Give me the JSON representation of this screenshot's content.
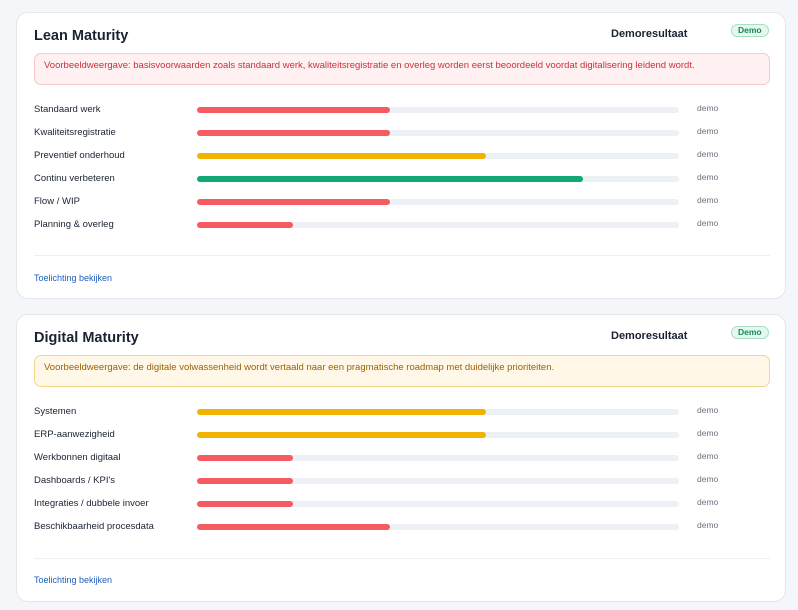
{
  "colors": {
    "red": "#f65b63",
    "yellow": "#f0b400",
    "green": "#12a874",
    "track": "#edf0f4"
  },
  "sections": [
    {
      "title": "Lean Maturity",
      "result_label": "Demoresultaat",
      "badge": "Demo",
      "notice": "Voorbeeldweergave: basisvoorwaarden zoals standaard werk, kwaliteitsregistratie en overleg worden eerst beoordeeld voordat digitalisering leidend wordt.",
      "notice_tone": "red",
      "rows": [
        {
          "label": "Standaard werk",
          "status": "demo",
          "level": 0.4,
          "color": "red"
        },
        {
          "label": "Kwaliteitsregistratie",
          "status": "demo",
          "level": 0.4,
          "color": "red"
        },
        {
          "label": "Preventief onderhoud",
          "status": "demo",
          "level": 0.6,
          "color": "yellow"
        },
        {
          "label": "Continu verbeteren",
          "status": "demo",
          "level": 0.8,
          "color": "green"
        },
        {
          "label": "Flow / WIP",
          "status": "demo",
          "level": 0.4,
          "color": "red"
        },
        {
          "label": "Planning & overleg",
          "status": "demo",
          "level": 0.2,
          "color": "red"
        }
      ],
      "link": "Toelichting bekijken"
    },
    {
      "title": "Digital Maturity",
      "result_label": "Demoresultaat",
      "badge": "Demo",
      "notice": "Voorbeeldweergave: de digitale volwassenheid wordt vertaald naar een pragmatische roadmap met duidelijke prioriteiten.",
      "notice_tone": "yellow",
      "rows": [
        {
          "label": "Systemen",
          "status": "demo",
          "level": 0.6,
          "color": "yellow"
        },
        {
          "label": "ERP-aanwezigheid",
          "status": "demo",
          "level": 0.6,
          "color": "yellow"
        },
        {
          "label": "Werkbonnen digitaal",
          "status": "demo",
          "level": 0.2,
          "color": "red"
        },
        {
          "label": "Dashboards / KPI's",
          "status": "demo",
          "level": 0.2,
          "color": "red"
        },
        {
          "label": "Integraties / dubbele invoer",
          "status": "demo",
          "level": 0.2,
          "color": "red"
        },
        {
          "label": "Beschikbaarheid procesdata",
          "status": "demo",
          "level": 0.4,
          "color": "red"
        }
      ],
      "link": "Toelichting bekijken"
    }
  ]
}
